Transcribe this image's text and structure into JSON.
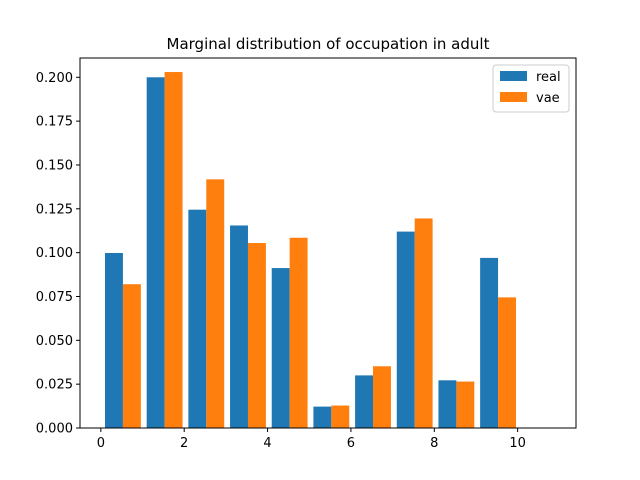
{
  "chart_data": {
    "type": "bar",
    "title": "Marginal distribution of occupation in adult",
    "xlabel": "",
    "ylabel": "",
    "x": [
      0,
      1,
      2,
      3,
      4,
      5,
      6,
      7,
      8,
      9,
      10
    ],
    "series": [
      {
        "name": "real",
        "color": "#1f77b4",
        "values": [
          0.0998,
          0.2,
          0.1245,
          0.1155,
          0.0912,
          0.0122,
          0.03,
          0.112,
          0.0272,
          0.097,
          0.0
        ]
      },
      {
        "name": "vae",
        "color": "#ff7f0e",
        "values": [
          0.082,
          0.203,
          0.1418,
          0.1055,
          0.1085,
          0.0128,
          0.0352,
          0.1195,
          0.0265,
          0.0745,
          0.0
        ]
      }
    ],
    "xlim": [
      -0.5,
      11.4
    ],
    "ylim": [
      0,
      0.211
    ],
    "xticks": [
      0,
      2,
      4,
      6,
      8,
      10
    ],
    "xtick_labels": [
      "0",
      "2",
      "4",
      "6",
      "8",
      "10"
    ],
    "yticks": [
      0,
      0.025,
      0.05,
      0.075,
      0.1,
      0.125,
      0.15,
      0.175,
      0.2
    ],
    "ytick_labels": [
      "0.000",
      "0.025",
      "0.050",
      "0.075",
      "0.100",
      "0.125",
      "0.150",
      "0.175",
      "0.200"
    ],
    "grid": false,
    "legend_position": "top-right"
  }
}
